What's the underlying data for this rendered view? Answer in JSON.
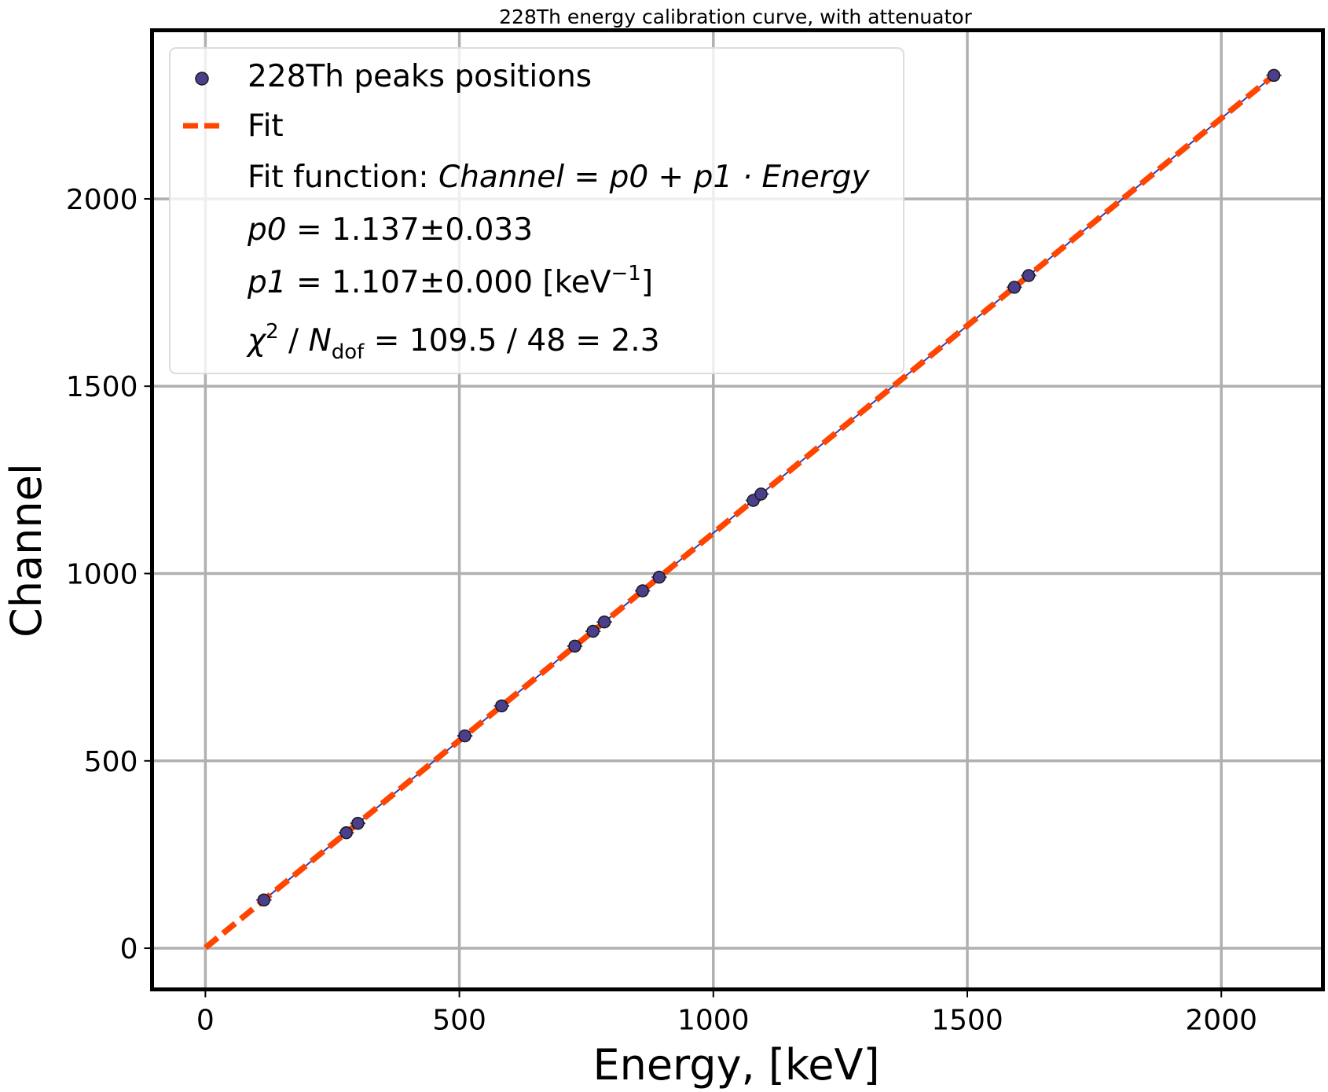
{
  "chart_data": {
    "type": "scatter",
    "title": "228Th energy calibration curve, with attenuator",
    "xlabel": "Energy, [keV]",
    "ylabel": "Channel",
    "xlim": [
      -105,
      2200
    ],
    "ylim": [
      -110,
      2450
    ],
    "xticks": [
      0,
      500,
      1000,
      1500,
      2000
    ],
    "yticks": [
      0,
      500,
      1000,
      1500,
      2000
    ],
    "grid": true,
    "legend_position": "top-left",
    "colors": {
      "points": "#4b3f8c",
      "fit": "#ff4500",
      "connect_line": "#3a3aa8",
      "grid": "#b0b0b0"
    },
    "series": [
      {
        "name": "228Th peaks positions",
        "kind": "scatter_with_xerr",
        "x": [
          115.2,
          277.4,
          300.1,
          510.8,
          583.2,
          727.3,
          763.1,
          785.4,
          860.6,
          893.4,
          1078.6,
          1093.9,
          1592.5,
          1620.7,
          2103.5
        ],
        "y": [
          128.7,
          308.2,
          333.3,
          566.6,
          646.7,
          806.2,
          845.9,
          870.6,
          953.8,
          990.2,
          1195.1,
          1212.1,
          1764.0,
          1795.2,
          2329.6
        ],
        "xerr": 15
      },
      {
        "name": "Fit",
        "kind": "line",
        "style": "dashed",
        "x": [
          0,
          2103.5
        ],
        "y": [
          1.137,
          2329.7
        ]
      }
    ],
    "legend": {
      "items": [
        "228Th peaks positions",
        "Fit"
      ],
      "fit_function_prefix": "Fit function: ",
      "fit_function_formula": "Channel = p0 + p1 · Energy",
      "p0_name": "p0",
      "p0_value": " = 1.137±0.033",
      "p1_name": "p1",
      "p1_value": " = 1.107±0.000 [keV",
      "p1_unit_exp": "−1",
      "p1_unit_close": "]",
      "chi_symbol": "χ",
      "chi_exp": "2",
      "chi_sep": " / ",
      "ndof_symbol": "N",
      "ndof_sub": "dof",
      "chi_value": " = 109.5 / 48 = 2.3"
    }
  }
}
